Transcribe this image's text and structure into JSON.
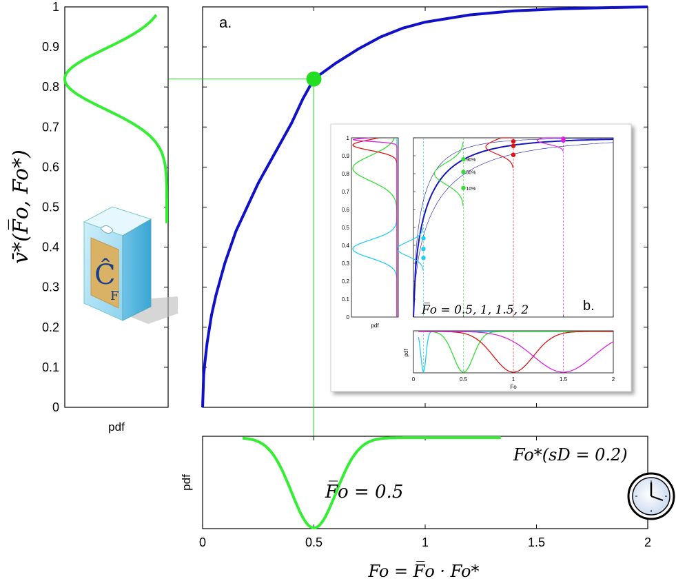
{
  "chart_data": [
    {
      "id": "main",
      "type": "line",
      "panel_label": "a.",
      "ylabel": "v̄*(F̅o, Fo*)",
      "xlim": [
        0,
        2
      ],
      "ylim": [
        0,
        1
      ],
      "x_ticks": [
        "0",
        "0.5",
        "1",
        "1.5",
        "2"
      ],
      "y_ticks": [
        "0",
        "0.1",
        "0.2",
        "0.3",
        "0.4",
        "0.5",
        "0.6",
        "0.7",
        "0.8",
        "0.9",
        "1"
      ],
      "curve_color": "#1010c8",
      "marker": {
        "x": 0.5,
        "y": 0.82,
        "color": "#22dd22"
      },
      "series": [
        {
          "x": [
            0,
            0.005,
            0.01,
            0.02,
            0.04,
            0.06,
            0.08,
            0.1,
            0.15,
            0.2,
            0.25,
            0.3,
            0.35,
            0.4,
            0.45,
            0.5,
            0.6,
            0.7,
            0.8,
            0.9,
            1.0,
            1.2,
            1.4,
            1.6,
            1.8,
            2.0
          ],
          "y": [
            0,
            0.08,
            0.11,
            0.16,
            0.23,
            0.28,
            0.32,
            0.36,
            0.44,
            0.5,
            0.56,
            0.61,
            0.66,
            0.71,
            0.77,
            0.82,
            0.86,
            0.895,
            0.925,
            0.947,
            0.962,
            0.98,
            0.99,
            0.995,
            0.998,
            1.0
          ]
        }
      ]
    },
    {
      "id": "left_pdf",
      "type": "line",
      "xlabel": "pdf",
      "ylim": [
        0,
        1
      ],
      "color": "#33ee33",
      "peak_y": 0.82,
      "start_y": 0.46,
      "end_y": 0.98
    },
    {
      "id": "bottom_pdf",
      "type": "line",
      "ylabel": "pdf",
      "xlabel": "Fo = F̅o · Fo*",
      "xlim": [
        0,
        2
      ],
      "x_ticks": [
        "0",
        "0.5",
        "1",
        "1.5",
        "2"
      ],
      "color": "#33ee33",
      "peak_x": 0.5,
      "start_x": 0.18,
      "end_x": 1.34,
      "annotation_mean": "F̅o = 0.5",
      "annotation_sd": "Fo*(sD = 0.2)"
    },
    {
      "id": "inset",
      "type": "line",
      "panel_label": "b.",
      "caption": "F̅o = 0.5, 1, 1.5, 2",
      "pct_labels": [
        "90%",
        "50%",
        "10%"
      ],
      "left_xlabel": "pdf",
      "bottom_xlabel": "Fo",
      "bottom_ylabel": "pdf",
      "y_ticks": [
        "0",
        "0.1",
        "0.2",
        "0.3",
        "0.4",
        "0.5",
        "0.6",
        "0.7",
        "0.8",
        "0.9",
        "1"
      ],
      "x_ticks": [
        "0",
        "0.5",
        "1",
        "1.5",
        "2"
      ],
      "colors": {
        "cyan": "#22ccee",
        "green": "#33dd33",
        "red": "#dd1111",
        "magenta": "#dd22dd",
        "blue": "#1515c0"
      }
    }
  ],
  "icons": {
    "box_label": "Ĉ",
    "box_sub": "F",
    "clock": "clock-icon"
  }
}
